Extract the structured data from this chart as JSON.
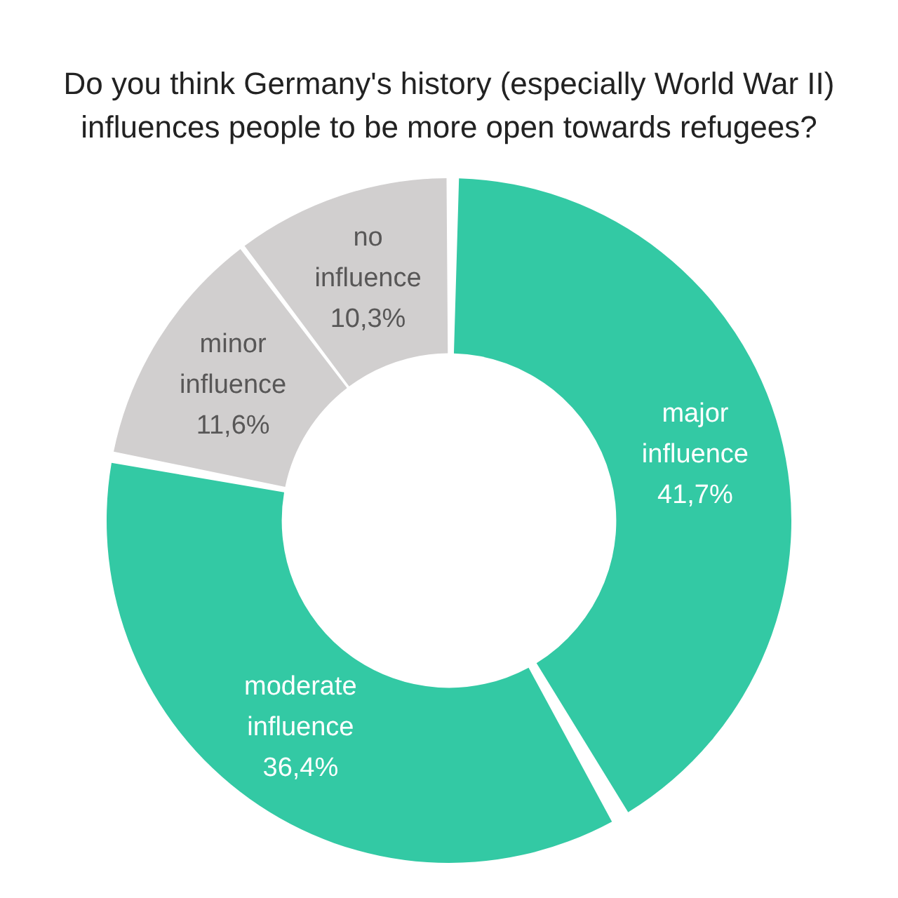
{
  "chart_data": {
    "type": "donut",
    "title": "Do you think Germany's history (especially World War II) influences people to be more open towards refugees?",
    "categories": [
      "major influence",
      "moderate influence",
      "minor influence",
      "no influence"
    ],
    "values": [
      41.7,
      36.4,
      11.6,
      10.3
    ],
    "value_labels": [
      "41,7%",
      "36,4%",
      "11,6%",
      "10,3%"
    ],
    "colors": [
      "#33c9a4",
      "#33c9a4",
      "#d1cfcf",
      "#d1cfcf"
    ]
  }
}
